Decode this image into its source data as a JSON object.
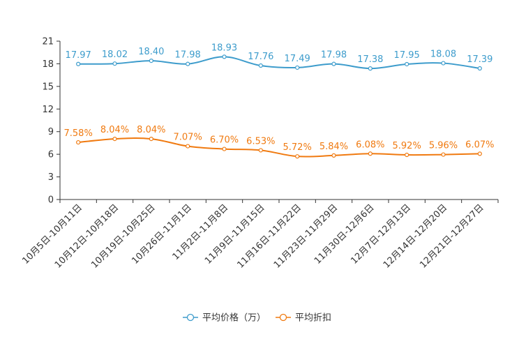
{
  "chart_data": {
    "type": "line",
    "title": "",
    "xlabel": "",
    "ylabel": "",
    "ylim": [
      0,
      21
    ],
    "yticks": [
      0,
      3,
      6,
      9,
      12,
      15,
      18,
      21
    ],
    "grid": false,
    "legend_position": "bottom",
    "categories": [
      "10月5日-10月11日",
      "10月12日-10月18日",
      "10月19日-10月25日",
      "10月26日-11月1日",
      "11月2日-11月8日",
      "11月9日-11月15日",
      "11月16日-11月22日",
      "11月23日-11月29日",
      "11月30日-12月6日",
      "12月7日-12月13日",
      "12月14日-12月20日",
      "12月21日-12月27日"
    ],
    "series": [
      {
        "name": "平均价格（万）",
        "color": "#3d9ccc",
        "values": [
          17.97,
          18.02,
          18.4,
          17.98,
          18.93,
          17.76,
          17.49,
          17.98,
          17.38,
          17.95,
          18.08,
          17.39
        ],
        "labels": [
          "17.97",
          "18.02",
          "18.40",
          "17.98",
          "18.93",
          "17.76",
          "17.49",
          "17.98",
          "17.38",
          "17.95",
          "18.08",
          "17.39"
        ]
      },
      {
        "name": "平均折扣",
        "color": "#f07a10",
        "values": [
          7.58,
          8.04,
          8.04,
          7.07,
          6.7,
          6.53,
          5.72,
          5.84,
          6.08,
          5.92,
          5.96,
          6.07
        ],
        "labels": [
          "7.58%",
          "8.04%",
          "8.04%",
          "7.07%",
          "6.70%",
          "6.53%",
          "5.72%",
          "5.84%",
          "6.08%",
          "5.92%",
          "5.96%",
          "6.07%"
        ]
      }
    ]
  }
}
